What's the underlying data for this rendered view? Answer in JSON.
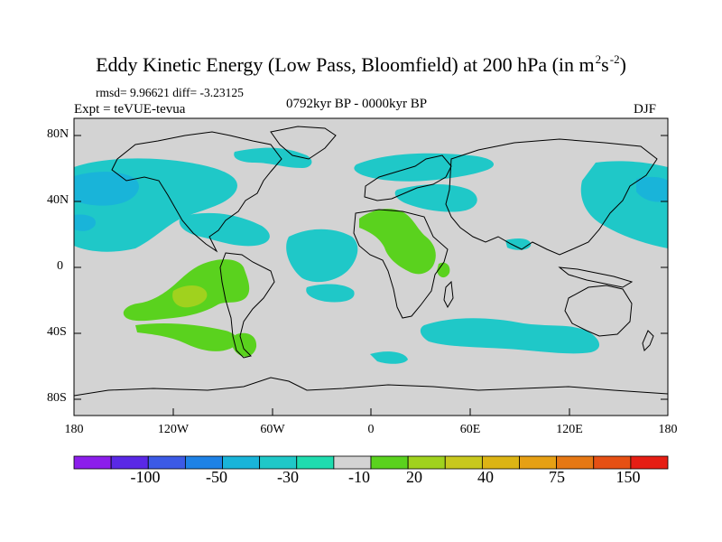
{
  "title": {
    "main": "Eddy Kinetic Energy (Low Pass, Bloomfield) at 200 hPa (in m",
    "sup1": "2",
    "mid": "s",
    "sup2": "-2",
    "end": ")"
  },
  "subtitle": {
    "stats": "rmsd= 9.96621 diff= -3.23125",
    "experiment": "Expt = teVUE-tevua",
    "period": "0792kyr BP - 0000kyr BP",
    "season": "DJF"
  },
  "map": {
    "background_color": "#d3d3d3",
    "lat_ticks": [
      "80N",
      "40N",
      "0",
      "40S",
      "80S"
    ],
    "lon_ticks": [
      "180",
      "120W",
      "60W",
      "0",
      "60E",
      "120E",
      "180"
    ],
    "lat_range": [
      -90,
      90
    ],
    "lon_range": [
      -180,
      180
    ],
    "anomaly_regions": [
      {
        "name": "north-pacific-storm-track",
        "level": -20,
        "color": "#1fc8c8"
      },
      {
        "name": "north-pacific-core",
        "level": -30,
        "color": "#19b4d9"
      },
      {
        "name": "eastern-pacific-band",
        "level": -20,
        "color": "#1fc8c8"
      },
      {
        "name": "tropical-atlantic-band",
        "level": -20,
        "color": "#1fc8c8"
      },
      {
        "name": "north-atlantic-storm-track",
        "level": -20,
        "color": "#1fc8c8"
      },
      {
        "name": "siberia-band",
        "level": -20,
        "color": "#1fc8c8"
      },
      {
        "name": "southern-indian-ocean-band",
        "level": -20,
        "color": "#1fc8c8"
      },
      {
        "name": "south-pacific-band",
        "level": 20,
        "color": "#5ad21e"
      },
      {
        "name": "south-pacific-core",
        "level": 30,
        "color": "#a0d21e"
      },
      {
        "name": "north-africa-arabia",
        "level": 20,
        "color": "#5ad21e"
      },
      {
        "name": "patagonia",
        "level": 20,
        "color": "#5ad21e"
      }
    ]
  },
  "colorbar": {
    "colors": [
      "#8c1eeb",
      "#5a28e6",
      "#3c5ae6",
      "#1e82e6",
      "#19b4d9",
      "#1fc8c8",
      "#1fdcaf",
      "#d3d3d3",
      "#5ad21e",
      "#a0d21e",
      "#c8c81e",
      "#dcb414",
      "#e6a014",
      "#e67814",
      "#e65014",
      "#e61e14"
    ],
    "labels": [
      "-100",
      "-50",
      "-30",
      "-10",
      "20",
      "40",
      "75",
      "150"
    ]
  }
}
